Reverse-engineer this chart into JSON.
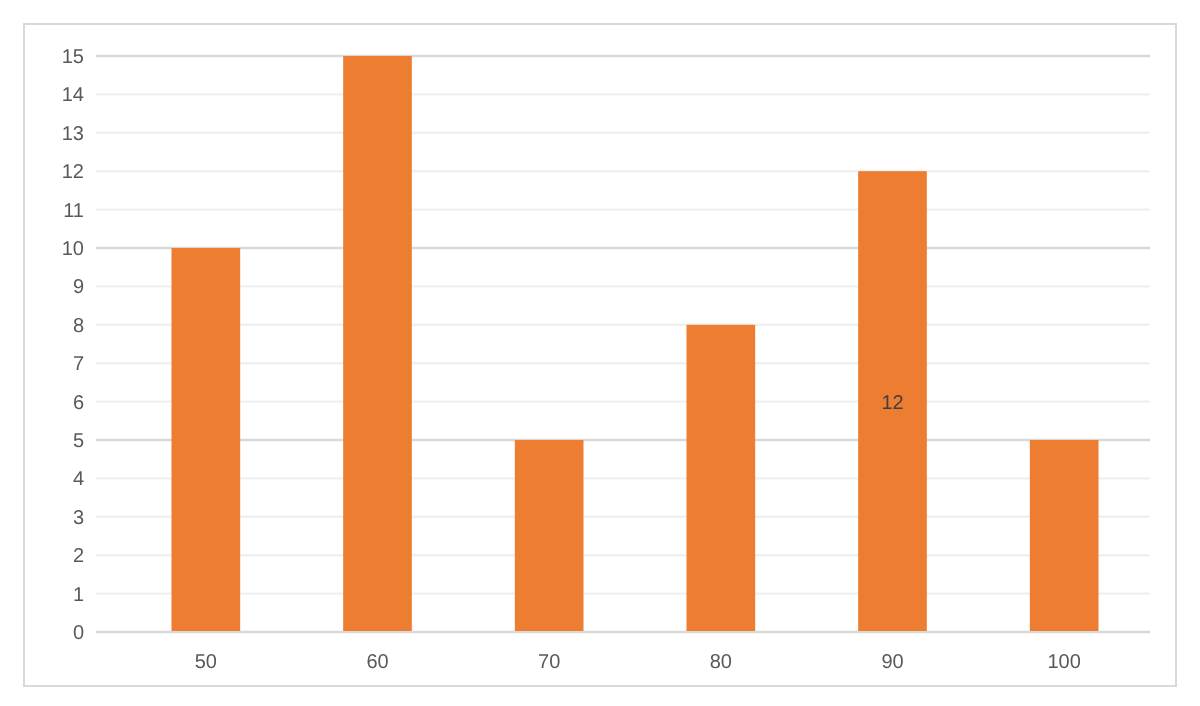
{
  "chart_data": {
    "type": "bar",
    "categories": [
      "50",
      "60",
      "70",
      "80",
      "90",
      "100"
    ],
    "values": [
      10,
      15,
      5,
      8,
      12,
      5
    ],
    "color": "#ed7d31",
    "value_labels": [
      null,
      null,
      null,
      null,
      "12",
      null
    ],
    "ylim": [
      0,
      15
    ],
    "yticks": [
      0,
      1,
      2,
      3,
      4,
      5,
      6,
      7,
      8,
      9,
      10,
      11,
      12,
      13,
      14,
      15
    ],
    "grid": "y"
  }
}
